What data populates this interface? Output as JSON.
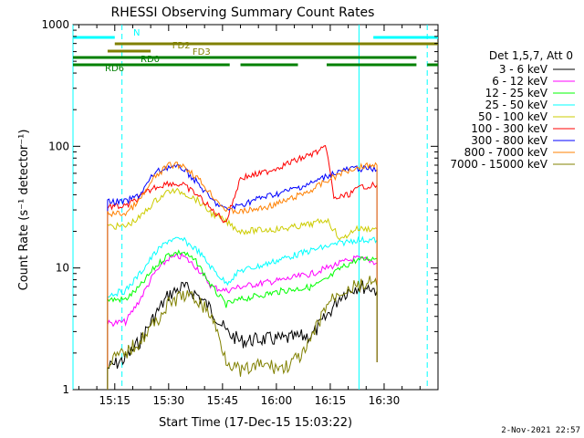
{
  "chart_data": {
    "type": "line",
    "title": "RHESSI Observing Summary Count Rates",
    "xlabel": "Start Time (17-Dec-15 15:03:22)",
    "ylabel": "Count Rate (s⁻¹ detector⁻¹)",
    "x_ticks": [
      "15:15",
      "15:30",
      "15:45",
      "16:00",
      "16:15",
      "16:30"
    ],
    "y_ticks": [
      "1",
      "10",
      "100",
      "1000"
    ],
    "x_range": [
      "15:03:22",
      "16:45"
    ],
    "y_range": [
      1,
      1000
    ],
    "y_scale": "log",
    "legend_header": "Det 1,5,7, Att 0",
    "legend_position": "right",
    "series": [
      {
        "name": "3 - 6 keV",
        "color": "#000000",
        "points": [
          [
            "15:13",
            1.5
          ],
          [
            "15:18",
            1.8
          ],
          [
            "15:22",
            2.5
          ],
          [
            "15:26",
            4
          ],
          [
            "15:30",
            6
          ],
          [
            "15:34",
            7
          ],
          [
            "15:38",
            6
          ],
          [
            "15:42",
            4.5
          ],
          [
            "15:46",
            3
          ],
          [
            "15:50",
            2.5
          ],
          [
            "15:56",
            2.6
          ],
          [
            "16:02",
            2.6
          ],
          [
            "16:10",
            2.8
          ],
          [
            "16:14",
            4
          ],
          [
            "16:18",
            6
          ],
          [
            "16:22",
            7
          ],
          [
            "16:26",
            7
          ],
          [
            "16:28",
            6.5
          ]
        ]
      },
      {
        "name": "6 - 12 keV",
        "color": "#ff00ff",
        "points": [
          [
            "15:13",
            3.5
          ],
          [
            "15:18",
            3.6
          ],
          [
            "15:22",
            5.5
          ],
          [
            "15:26",
            9
          ],
          [
            "15:30",
            12
          ],
          [
            "15:34",
            12.5
          ],
          [
            "15:38",
            10
          ],
          [
            "15:42",
            7
          ],
          [
            "15:46",
            6.5
          ],
          [
            "15:50",
            7
          ],
          [
            "15:56",
            7.5
          ],
          [
            "16:02",
            8
          ],
          [
            "16:10",
            9
          ],
          [
            "16:14",
            10
          ],
          [
            "16:18",
            11
          ],
          [
            "16:22",
            12
          ],
          [
            "16:26",
            11.5
          ],
          [
            "16:28",
            11
          ]
        ]
      },
      {
        "name": "12 - 25 keV",
        "color": "#00ff00",
        "points": [
          [
            "15:13",
            5.5
          ],
          [
            "15:18",
            5.5
          ],
          [
            "15:22",
            7
          ],
          [
            "15:26",
            10
          ],
          [
            "15:30",
            13
          ],
          [
            "15:34",
            13.5
          ],
          [
            "15:38",
            11
          ],
          [
            "15:42",
            7
          ],
          [
            "15:46",
            5
          ],
          [
            "15:50",
            5.5
          ],
          [
            "15:56",
            6
          ],
          [
            "16:02",
            6.5
          ],
          [
            "16:10",
            7
          ],
          [
            "16:14",
            8
          ],
          [
            "16:18",
            10
          ],
          [
            "16:22",
            11.5
          ],
          [
            "16:26",
            12
          ],
          [
            "16:28",
            12
          ]
        ]
      },
      {
        "name": "25 - 50 keV",
        "color": "#00ffff",
        "points": [
          [
            "15:13",
            6
          ],
          [
            "15:18",
            6.5
          ],
          [
            "15:22",
            9
          ],
          [
            "15:26",
            13
          ],
          [
            "15:30",
            17
          ],
          [
            "15:34",
            17
          ],
          [
            "15:38",
            14
          ],
          [
            "15:42",
            10
          ],
          [
            "15:46",
            7.5
          ],
          [
            "15:50",
            9.5
          ],
          [
            "15:56",
            10.5
          ],
          [
            "16:02",
            12
          ],
          [
            "16:10",
            14
          ],
          [
            "16:14",
            15
          ],
          [
            "16:18",
            16
          ],
          [
            "16:22",
            17
          ],
          [
            "16:26",
            17
          ],
          [
            "16:28",
            17
          ]
        ]
      },
      {
        "name": "50 - 100 keV",
        "color": "#cccc00",
        "points": [
          [
            "15:13",
            22
          ],
          [
            "15:18",
            22
          ],
          [
            "15:22",
            26
          ],
          [
            "15:26",
            35
          ],
          [
            "15:30",
            43
          ],
          [
            "15:34",
            42
          ],
          [
            "15:38",
            36
          ],
          [
            "15:42",
            28
          ],
          [
            "15:46",
            24
          ],
          [
            "15:50",
            20
          ],
          [
            "15:56",
            20.5
          ],
          [
            "16:02",
            21
          ],
          [
            "16:10",
            23
          ],
          [
            "16:14",
            25
          ],
          [
            "16:18",
            17
          ],
          [
            "16:22",
            21
          ],
          [
            "16:26",
            21
          ],
          [
            "16:28",
            21
          ]
        ]
      },
      {
        "name": "100 - 300 keV",
        "color": "#ff0000",
        "points": [
          [
            "15:13",
            32
          ],
          [
            "15:18",
            32
          ],
          [
            "15:22",
            38
          ],
          [
            "15:26",
            46
          ],
          [
            "15:30",
            50
          ],
          [
            "15:34",
            48
          ],
          [
            "15:38",
            40
          ],
          [
            "15:42",
            30
          ],
          [
            "15:46",
            24
          ],
          [
            "15:50",
            55
          ],
          [
            "15:56",
            60
          ],
          [
            "16:02",
            70
          ],
          [
            "16:08",
            82
          ],
          [
            "16:14",
            97
          ],
          [
            "16:16",
            37
          ],
          [
            "16:20",
            40
          ],
          [
            "16:24",
            47
          ],
          [
            "16:28",
            48
          ]
        ]
      },
      {
        "name": "300 - 800 keV",
        "color": "#0000ff",
        "points": [
          [
            "15:13",
            35
          ],
          [
            "15:18",
            35
          ],
          [
            "15:22",
            40
          ],
          [
            "15:26",
            60
          ],
          [
            "15:30",
            68
          ],
          [
            "15:34",
            66
          ],
          [
            "15:38",
            50
          ],
          [
            "15:42",
            36
          ],
          [
            "15:46",
            30
          ],
          [
            "15:50",
            33
          ],
          [
            "15:56",
            38
          ],
          [
            "16:02",
            42
          ],
          [
            "16:10",
            50
          ],
          [
            "16:14",
            57
          ],
          [
            "16:18",
            63
          ],
          [
            "16:22",
            66
          ],
          [
            "16:26",
            65
          ],
          [
            "16:28",
            64
          ]
        ]
      },
      {
        "name": "800 - 7000 keV",
        "color": "#ff8000",
        "points": [
          [
            "15:13",
            28
          ],
          [
            "15:18",
            28
          ],
          [
            "15:22",
            36
          ],
          [
            "15:26",
            55
          ],
          [
            "15:30",
            70
          ],
          [
            "15:34",
            70
          ],
          [
            "15:38",
            55
          ],
          [
            "15:42",
            40
          ],
          [
            "15:46",
            30
          ],
          [
            "15:50",
            29
          ],
          [
            "15:56",
            31
          ],
          [
            "16:02",
            35
          ],
          [
            "16:10",
            44
          ],
          [
            "16:14",
            52
          ],
          [
            "16:18",
            60
          ],
          [
            "16:22",
            67
          ],
          [
            "16:26",
            70
          ],
          [
            "16:28",
            70
          ]
        ]
      },
      {
        "name": "7000 - 15000 keV",
        "color": "#808000",
        "points": [
          [
            "15:13",
            1.7
          ],
          [
            "15:18",
            2
          ],
          [
            "15:22",
            2.5
          ],
          [
            "15:26",
            3.5
          ],
          [
            "15:30",
            5
          ],
          [
            "15:34",
            6
          ],
          [
            "15:38",
            5.5
          ],
          [
            "15:42",
            4
          ],
          [
            "15:46",
            1.8
          ],
          [
            "15:50",
            1.4
          ],
          [
            "15:56",
            1.6
          ],
          [
            "16:02",
            1.5
          ],
          [
            "16:08",
            2
          ],
          [
            "16:14",
            5
          ],
          [
            "16:18",
            6.5
          ],
          [
            "16:22",
            7
          ],
          [
            "16:26",
            7.5
          ],
          [
            "16:28",
            7
          ]
        ]
      }
    ],
    "state_bars": [
      {
        "label": "N",
        "color": "#00ffff",
        "segments": [
          [
            "15:03:22",
            "15:15"
          ],
          [
            "16:27",
            "16:45"
          ]
        ]
      },
      {
        "label": "FD2",
        "color": "#808000",
        "segments": [
          [
            "15:15",
            "16:45"
          ]
        ]
      },
      {
        "label": "FD3",
        "color": "#808000",
        "segments": [
          [
            "15:13",
            "15:25"
          ]
        ]
      },
      {
        "label": "RD0",
        "color": "#008000",
        "segments": [
          [
            "15:03:22",
            "16:39"
          ]
        ]
      },
      {
        "label": "RD6",
        "color": "#008000",
        "segments": [
          [
            "15:03:22",
            "15:47"
          ],
          [
            "15:50",
            "16:06"
          ],
          [
            "16:14",
            "16:39"
          ],
          [
            "16:42",
            "16:45"
          ]
        ]
      }
    ],
    "vertical_lines": [
      {
        "color": "#00ffff",
        "style": "solid",
        "time": "15:03:22"
      },
      {
        "color": "#00ffff",
        "style": "dashed",
        "time": "15:17"
      },
      {
        "color": "#00ffff",
        "style": "solid",
        "time": "16:23"
      },
      {
        "color": "#00ffff",
        "style": "dashed",
        "time": "16:42"
      }
    ],
    "grid": false
  },
  "footer": {
    "date_stamp": "2-Nov-2021 22:57"
  }
}
